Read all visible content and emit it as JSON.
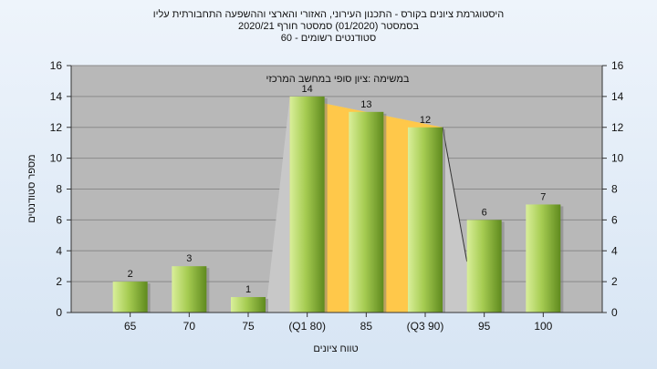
{
  "chart_data": {
    "type": "bar",
    "title_lines": [
      "היסטוגרמת ציונים בקורס - התכנון העירוני, האזורי והארצי וההשפעה התחבורתית עליו",
      "בסמסטר  (01/2020)  סמסטר חורף  2020/21",
      "סטודנטים רשומים - 60"
    ],
    "annotation": "במשימה :ציון סופי במחשב המרכזי",
    "xlabel": "טווח ציונים",
    "ylabel": "מספר סטודנטים",
    "categories": [
      "65",
      "70",
      "75",
      "(Q1 80)",
      "85",
      "(Q3 90)",
      "95",
      "100"
    ],
    "values": [
      2,
      3,
      1,
      14,
      13,
      12,
      6,
      7
    ],
    "data_labels": [
      "2",
      "3",
      "1",
      "14",
      "13",
      "12",
      "6",
      "7"
    ],
    "ylim": [
      0,
      16
    ],
    "yticks": [
      "0",
      "2",
      "4",
      "6",
      "8",
      "10",
      "12",
      "14",
      "16"
    ],
    "grid": true,
    "colors": {
      "plot_bg": "#b8b8b8",
      "bar_light": "#d9ef9a",
      "bar_dark": "#5f8a1e",
      "iqr_fill": "#ffc84a",
      "envelope": "#c8c8c8"
    }
  }
}
